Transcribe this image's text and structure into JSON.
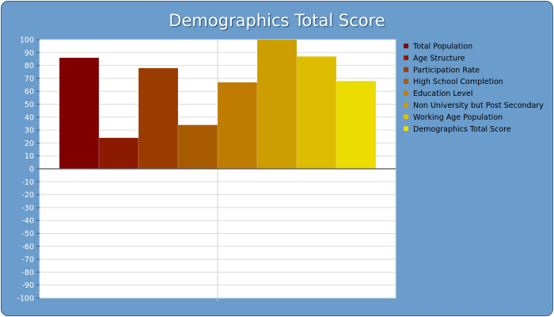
{
  "chart_data": {
    "type": "bar",
    "title": "Demographics Total Score",
    "xlabel": "",
    "ylabel": "",
    "ylim": [
      -100,
      100
    ],
    "ytick_step": 10,
    "grid": true,
    "legend_position": "right",
    "series": [
      {
        "name": "Total Population",
        "value": 86,
        "color": "#800000"
      },
      {
        "name": "Age Structure",
        "value": 24,
        "color": "#8b1a00"
      },
      {
        "name": "Participation Rate",
        "value": 78,
        "color": "#9a3c00"
      },
      {
        "name": "High School Completion",
        "value": 34,
        "color": "#a85a00"
      },
      {
        "name": "Education Level",
        "value": 67,
        "color": "#bf7c00"
      },
      {
        "name": "Non University but Post Secondary",
        "value": 100,
        "color": "#cc9e00"
      },
      {
        "name": "Working Age Population",
        "value": 87,
        "color": "#ddbd00"
      },
      {
        "name": "Demographics Total Score",
        "value": 68,
        "color": "#ecdc00"
      }
    ]
  }
}
